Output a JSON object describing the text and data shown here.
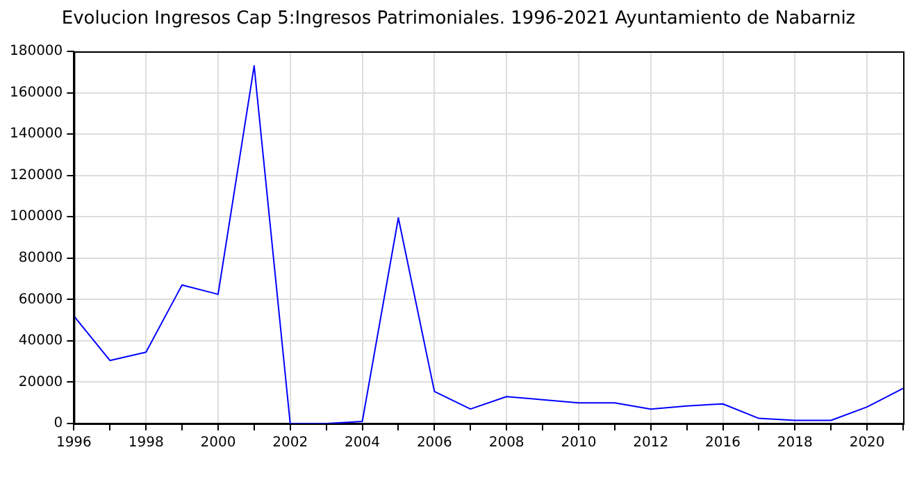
{
  "chart_data": {
    "type": "line",
    "title": "Evolucion Ingresos Cap 5:Ingresos Patrimoniales. 1996-2021 Ayuntamiento de Nabarniz",
    "categories": [
      "1996",
      null,
      "1998",
      null,
      "2000",
      null,
      "2002",
      null,
      "2004",
      null,
      "2006",
      null,
      "2008",
      null,
      "2010",
      null,
      "2012",
      null,
      "2016",
      null,
      "2018",
      null,
      "2020",
      null
    ],
    "series": [
      {
        "color": "#0000ff",
        "values": [
          52000,
          30500,
          34500,
          67000,
          62500,
          173000,
          0,
          0,
          1000,
          99500,
          15500,
          7000,
          13000,
          11500,
          10000,
          10000,
          7000,
          8500,
          9500,
          2500,
          1500,
          1500,
          8000,
          17000
        ]
      }
    ],
    "ylim": [
      0,
      180000
    ],
    "yticks": [
      0,
      20000,
      40000,
      60000,
      80000,
      100000,
      120000,
      140000,
      160000,
      180000
    ],
    "grid": true,
    "marker": "none",
    "line_style": "solid"
  }
}
